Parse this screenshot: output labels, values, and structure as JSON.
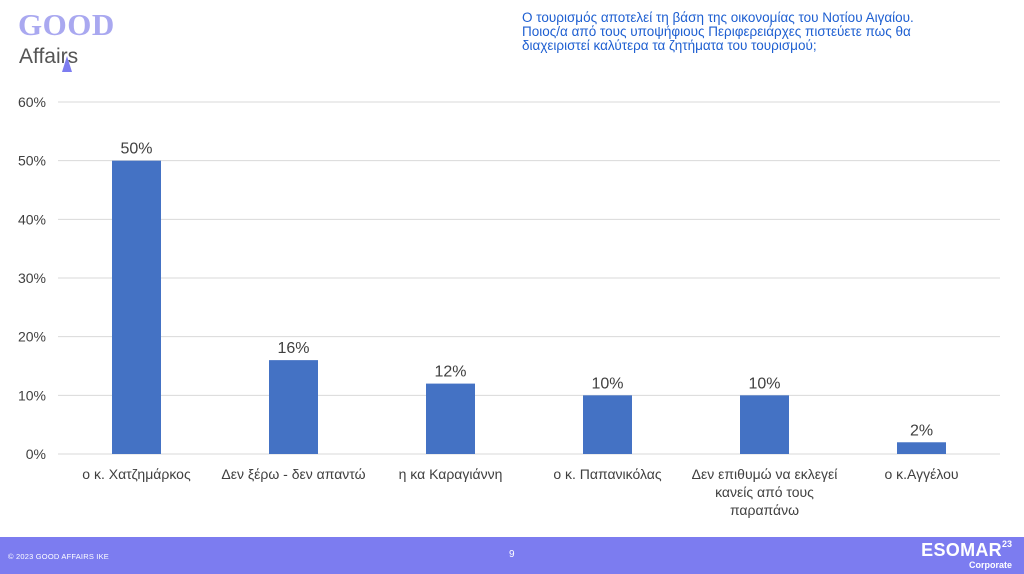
{
  "logo": {
    "line1": "GOOD",
    "line2": "Affairs"
  },
  "question": {
    "lines": [
      "Ο τουρισμός αποτελεί τη βάση της οικονομίας του Νοτίου Αιγαίου.",
      "Ποιος/α από τους υποψήφιους Περιφερειάρχες πιστεύετε πως θα",
      "διαχειριστεί καλύτερα τα ζητήματα του τουρισμού;"
    ]
  },
  "chart_data": {
    "type": "bar",
    "categories": [
      [
        "ο κ. Χατζημάρκος"
      ],
      [
        "Δεν ξέρω - δεν απαντώ"
      ],
      [
        "η κα Καραγιάννη"
      ],
      [
        "ο κ. Παπανικόλας"
      ],
      [
        "Δεν επιθυμώ να εκλεγεί",
        "κανείς από τους",
        "παραπάνω"
      ],
      [
        "ο κ.Αγγέλου"
      ]
    ],
    "values": [
      50,
      16,
      12,
      10,
      10,
      2
    ],
    "data_labels": [
      "50%",
      "16%",
      "12%",
      "10%",
      "10%",
      "2%"
    ],
    "ylim": [
      0,
      60
    ],
    "yticks": [
      0,
      10,
      20,
      30,
      40,
      50,
      60
    ],
    "ytick_labels": [
      "0%",
      "10%",
      "20%",
      "30%",
      "40%",
      "50%",
      "60%"
    ],
    "title": "",
    "xlabel": "",
    "ylabel": "",
    "grid": true,
    "bar_color": "#4472c4",
    "grid_color": "#d9d9d9"
  },
  "footer": {
    "copyright": "© 2023 GOOD AFFAIRS IKE",
    "page": "9",
    "brand": "ESOMAR",
    "brand_year": "23",
    "brand_sub": "Corporate",
    "background": "#7c7cf0"
  }
}
